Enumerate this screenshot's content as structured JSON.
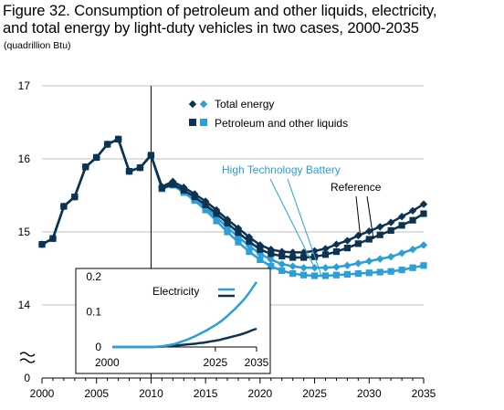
{
  "chart_data": {
    "type": "line",
    "title_line1": "Figure 32. Consumption of petroleum and other liquids, electricity,",
    "title_line2": "and total energy by light-duty vehicles in two cases, 2000-2035",
    "units": "(quadrillion Btu)",
    "x": [
      2000,
      2001,
      2002,
      2003,
      2004,
      2005,
      2006,
      2007,
      2008,
      2009,
      2010,
      2011,
      2012,
      2013,
      2014,
      2015,
      2016,
      2017,
      2018,
      2019,
      2020,
      2021,
      2022,
      2023,
      2024,
      2025,
      2026,
      2027,
      2028,
      2029,
      2030,
      2031,
      2032,
      2033,
      2034,
      2035
    ],
    "x_ticks": [
      "2000",
      "2005",
      "2010",
      "2015",
      "2020",
      "2025",
      "2030",
      "2035"
    ],
    "y_ticks": [
      "0",
      "14",
      "15",
      "16",
      "17"
    ],
    "ylim_shown": [
      13.5,
      17
    ],
    "axis_break": true,
    "history_divider_year": 2010,
    "legend": {
      "total_label": "Total energy",
      "petroleum_label": "Petroleum and other liquids",
      "position": "top-right"
    },
    "case_labels": {
      "htb": "High Technology Battery",
      "ref": "Reference"
    },
    "colors": {
      "reference": "#0d3352",
      "htb": "#2a9fd8",
      "divider": "#000000",
      "grid": "#bfbfbf"
    },
    "series": [
      {
        "case": "reference",
        "measure": "total_energy",
        "values": [
          14.83,
          14.91,
          15.35,
          15.48,
          15.89,
          16.02,
          16.2,
          16.27,
          15.83,
          15.88,
          16.05,
          15.62,
          15.69,
          15.61,
          15.52,
          15.42,
          15.3,
          15.17,
          15.05,
          14.93,
          14.82,
          14.76,
          14.73,
          14.72,
          14.72,
          14.74,
          14.77,
          14.83,
          14.88,
          14.95,
          15.01,
          15.07,
          15.13,
          15.21,
          15.29,
          15.38
        ]
      },
      {
        "case": "reference",
        "measure": "petroleum",
        "values": [
          14.83,
          14.91,
          15.35,
          15.48,
          15.89,
          16.02,
          16.2,
          16.27,
          15.83,
          15.88,
          16.05,
          15.6,
          15.65,
          15.57,
          15.48,
          15.37,
          15.25,
          15.12,
          14.99,
          14.87,
          14.76,
          14.7,
          14.67,
          14.65,
          14.65,
          14.66,
          14.69,
          14.73,
          14.78,
          14.84,
          14.9,
          14.96,
          15.02,
          15.09,
          15.16,
          15.25
        ]
      },
      {
        "case": "htb",
        "measure": "total_energy",
        "values": [
          14.83,
          14.91,
          15.35,
          15.48,
          15.89,
          16.02,
          16.2,
          16.27,
          15.83,
          15.88,
          16.05,
          15.6,
          15.66,
          15.57,
          15.47,
          15.34,
          15.2,
          15.06,
          14.93,
          14.81,
          14.7,
          14.62,
          14.56,
          14.53,
          14.51,
          14.51,
          14.51,
          14.52,
          14.54,
          14.57,
          14.6,
          14.63,
          14.66,
          14.71,
          14.76,
          14.82
        ]
      },
      {
        "case": "htb",
        "measure": "petroleum",
        "values": [
          14.83,
          14.91,
          15.35,
          15.48,
          15.89,
          16.02,
          16.2,
          16.27,
          15.83,
          15.88,
          16.05,
          15.59,
          15.64,
          15.54,
          15.43,
          15.3,
          15.15,
          15.0,
          14.86,
          14.73,
          14.62,
          14.53,
          14.47,
          14.43,
          14.41,
          14.4,
          14.4,
          14.41,
          14.42,
          14.43,
          14.44,
          14.45,
          14.46,
          14.48,
          14.51,
          14.54
        ]
      }
    ],
    "inset": {
      "title": "Electricity",
      "ylim": [
        0,
        0.2
      ],
      "y_ticks": [
        "0",
        "0.1",
        "0.2"
      ],
      "x_labels": [
        "2000",
        "2025",
        "2035"
      ],
      "x": [
        2000,
        2001,
        2002,
        2003,
        2004,
        2005,
        2006,
        2007,
        2008,
        2009,
        2010,
        2011,
        2012,
        2013,
        2014,
        2015,
        2016,
        2017,
        2018,
        2019,
        2020,
        2021,
        2022,
        2023,
        2024,
        2025,
        2026,
        2027,
        2028,
        2029,
        2030,
        2031,
        2032,
        2033,
        2034,
        2035
      ],
      "series": [
        {
          "case": "reference",
          "values": [
            0,
            0,
            0,
            0,
            0,
            0,
            0,
            0,
            0,
            0,
            0,
            0.001,
            0.001,
            0.002,
            0.003,
            0.004,
            0.005,
            0.006,
            0.007,
            0.008,
            0.009,
            0.011,
            0.012,
            0.014,
            0.016,
            0.018,
            0.02,
            0.023,
            0.026,
            0.029,
            0.032,
            0.035,
            0.039,
            0.043,
            0.048,
            0.052
          ]
        },
        {
          "case": "htb",
          "values": [
            0,
            0,
            0,
            0,
            0,
            0,
            0,
            0,
            0,
            0,
            0,
            0.001,
            0.002,
            0.004,
            0.006,
            0.008,
            0.012,
            0.016,
            0.02,
            0.025,
            0.03,
            0.036,
            0.042,
            0.048,
            0.055,
            0.062,
            0.07,
            0.079,
            0.089,
            0.1,
            0.111,
            0.123,
            0.136,
            0.151,
            0.168,
            0.185
          ]
        }
      ]
    }
  }
}
